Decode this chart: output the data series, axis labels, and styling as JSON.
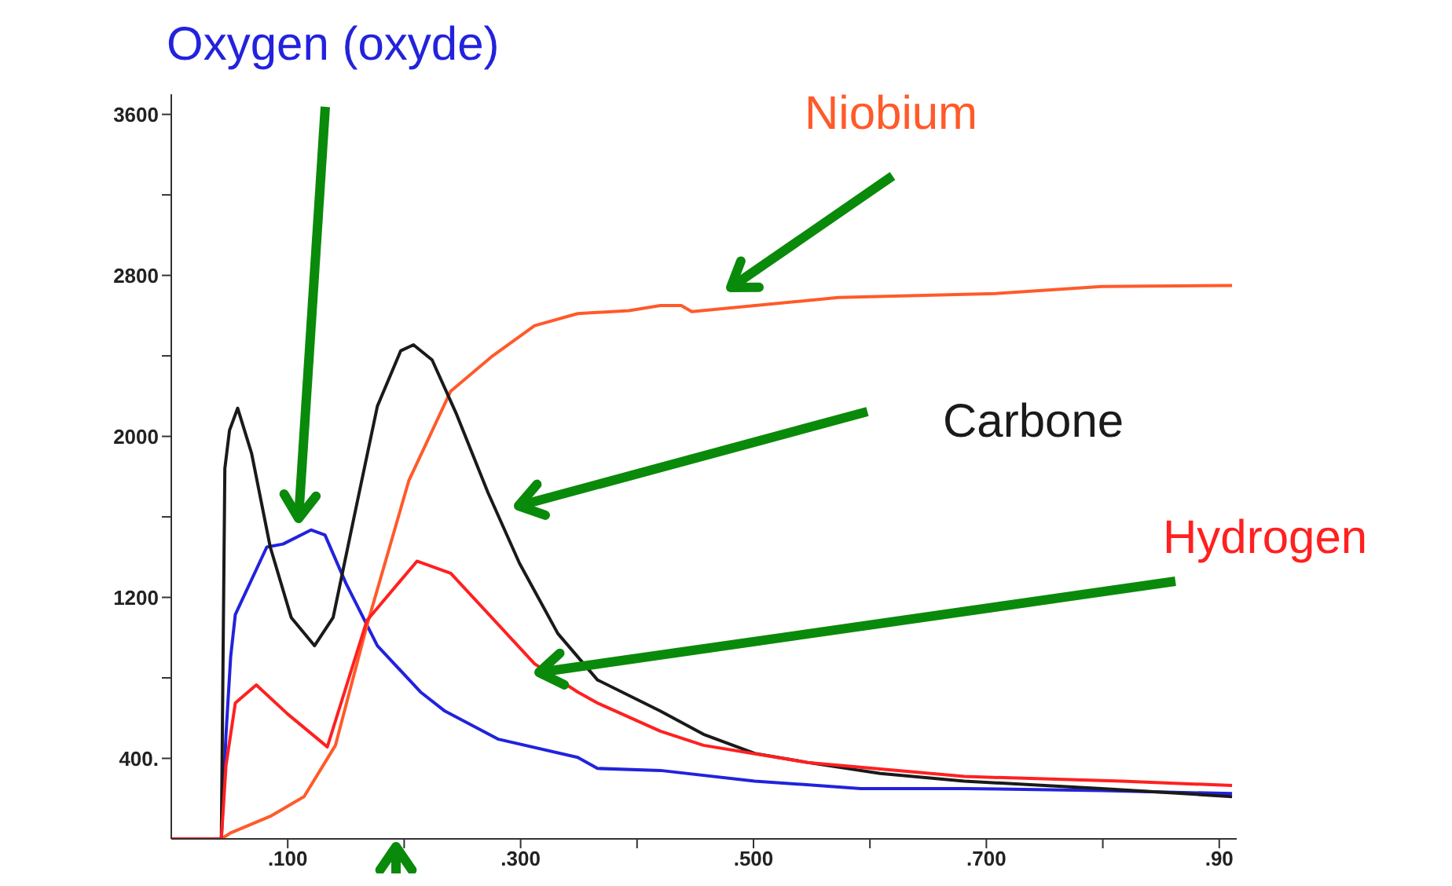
{
  "chart_data": {
    "type": "line",
    "xlim": [
      0,
      0.915
    ],
    "ylim": [
      0,
      3700
    ],
    "xticks": [
      {
        "value": 0.1,
        "label": ".100"
      },
      {
        "value": 0.2,
        "label": null
      },
      {
        "value": 0.3,
        "label": ".300"
      },
      {
        "value": 0.4,
        "label": null
      },
      {
        "value": 0.5,
        "label": ".500"
      },
      {
        "value": 0.6,
        "label": null
      },
      {
        "value": 0.7,
        "label": ".700"
      },
      {
        "value": 0.8,
        "label": null
      },
      {
        "value": 0.9,
        "label": ".90"
      }
    ],
    "yticks": [
      {
        "value": 400,
        "label": "400."
      },
      {
        "value": 800,
        "label": null
      },
      1200,
      {
        "value": 1600,
        "label": null
      },
      2000,
      {
        "value": 2400,
        "label": null
      },
      2800,
      {
        "value": 3200,
        "label": null
      },
      3600
    ],
    "grid": false,
    "legend": false,
    "marker": "none",
    "line_style": "solid",
    "series": [
      {
        "name": "Oxygen (oxyde)",
        "color": "#2222dd",
        "x": [
          0,
          0.043,
          0.047,
          0.051,
          0.055,
          0.082,
          0.096,
          0.12,
          0.132,
          0.15,
          0.177,
          0.214,
          0.235,
          0.281,
          0.349,
          0.366,
          0.42,
          0.501,
          0.592,
          0.681,
          0.799,
          0.911
        ],
        "values": [
          0,
          0,
          520,
          905,
          1115,
          1450,
          1465,
          1535,
          1510,
          1270,
          960,
          730,
          635,
          495,
          405,
          350,
          340,
          287,
          250,
          250,
          240,
          225
        ]
      },
      {
        "name": "Niobium",
        "color": "#ff5a2a",
        "x": [
          0,
          0.043,
          0.051,
          0.086,
          0.114,
          0.141,
          0.168,
          0.204,
          0.24,
          0.276,
          0.312,
          0.349,
          0.393,
          0.42,
          0.438,
          0.447,
          0.573,
          0.708,
          0.799,
          0.911
        ],
        "values": [
          0,
          0,
          30,
          115,
          210,
          465,
          1060,
          1780,
          2225,
          2400,
          2550,
          2610,
          2625,
          2650,
          2650,
          2620,
          2690,
          2710,
          2745,
          2750
        ]
      },
      {
        "name": "Carbone",
        "color": "#1a1a1a",
        "x": [
          0,
          0.043,
          0.046,
          0.05,
          0.057,
          0.069,
          0.085,
          0.103,
          0.123,
          0.139,
          0.157,
          0.177,
          0.197,
          0.208,
          0.224,
          0.245,
          0.272,
          0.299,
          0.332,
          0.366,
          0.42,
          0.457,
          0.501,
          0.546,
          0.609,
          0.681,
          0.799,
          0.911
        ],
        "values": [
          0,
          0,
          1840,
          2030,
          2140,
          1915,
          1450,
          1100,
          960,
          1100,
          1600,
          2150,
          2425,
          2455,
          2380,
          2110,
          1720,
          1370,
          1020,
          790,
          635,
          520,
          425,
          380,
          325,
          287,
          250,
          210
        ]
      },
      {
        "name": "Hydrogen",
        "color": "#ff2020",
        "x": [
          0,
          0.043,
          0.047,
          0.055,
          0.073,
          0.1,
          0.134,
          0.168,
          0.211,
          0.24,
          0.312,
          0.349,
          0.366,
          0.42,
          0.457,
          0.546,
          0.681,
          0.816,
          0.911
        ],
        "values": [
          0,
          0,
          365,
          675,
          765,
          620,
          457,
          1085,
          1380,
          1320,
          870,
          730,
          675,
          535,
          465,
          380,
          310,
          287,
          265
        ]
      }
    ]
  }
}
